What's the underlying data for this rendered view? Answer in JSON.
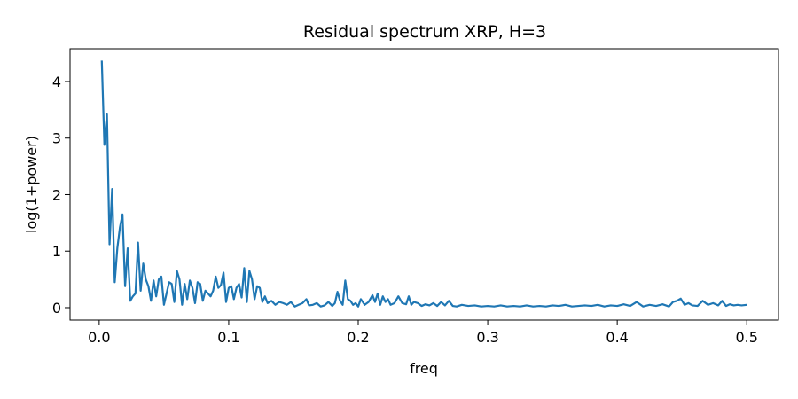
{
  "chart_data": {
    "type": "line",
    "title": "Residual spectrum XRP, H=3",
    "xlabel": "freq",
    "ylabel": "log(1+power)",
    "xlim": [
      -0.0225,
      0.5245
    ],
    "ylim": [
      -0.22,
      4.58
    ],
    "xticks": [
      0.0,
      0.1,
      0.2,
      0.3,
      0.4,
      0.5
    ],
    "xtick_labels": [
      "0.0",
      "0.1",
      "0.2",
      "0.3",
      "0.4",
      "0.5"
    ],
    "yticks": [
      0,
      1,
      2,
      3,
      4
    ],
    "ytick_labels": [
      "0",
      "1",
      "2",
      "3",
      "4"
    ],
    "grid": false,
    "legend": null,
    "series": [
      {
        "color": "#1f77b4",
        "x": [
          0.002,
          0.004,
          0.006,
          0.008,
          0.01,
          0.012,
          0.014,
          0.016,
          0.018,
          0.02,
          0.022,
          0.024,
          0.026,
          0.028,
          0.03,
          0.032,
          0.034,
          0.036,
          0.038,
          0.04,
          0.042,
          0.044,
          0.046,
          0.048,
          0.05,
          0.052,
          0.054,
          0.056,
          0.058,
          0.06,
          0.062,
          0.064,
          0.066,
          0.068,
          0.07,
          0.072,
          0.074,
          0.076,
          0.078,
          0.08,
          0.082,
          0.084,
          0.086,
          0.088,
          0.09,
          0.092,
          0.094,
          0.096,
          0.098,
          0.1,
          0.102,
          0.104,
          0.106,
          0.108,
          0.11,
          0.112,
          0.114,
          0.116,
          0.118,
          0.12,
          0.122,
          0.124,
          0.126,
          0.128,
          0.13,
          0.133,
          0.136,
          0.139,
          0.142,
          0.145,
          0.148,
          0.151,
          0.154,
          0.157,
          0.16,
          0.162,
          0.165,
          0.168,
          0.171,
          0.174,
          0.177,
          0.18,
          0.182,
          0.184,
          0.186,
          0.188,
          0.19,
          0.192,
          0.194,
          0.196,
          0.198,
          0.2,
          0.202,
          0.205,
          0.208,
          0.211,
          0.213,
          0.215,
          0.217,
          0.219,
          0.221,
          0.223,
          0.225,
          0.228,
          0.231,
          0.234,
          0.237,
          0.239,
          0.241,
          0.243,
          0.246,
          0.249,
          0.252,
          0.255,
          0.258,
          0.261,
          0.264,
          0.267,
          0.27,
          0.273,
          0.276,
          0.28,
          0.285,
          0.29,
          0.295,
          0.3,
          0.305,
          0.31,
          0.315,
          0.32,
          0.325,
          0.33,
          0.335,
          0.34,
          0.345,
          0.35,
          0.355,
          0.36,
          0.365,
          0.37,
          0.375,
          0.38,
          0.385,
          0.39,
          0.395,
          0.4,
          0.405,
          0.41,
          0.415,
          0.42,
          0.425,
          0.43,
          0.435,
          0.44,
          0.443,
          0.446,
          0.449,
          0.452,
          0.455,
          0.458,
          0.462,
          0.466,
          0.47,
          0.474,
          0.478,
          0.481,
          0.484,
          0.487,
          0.49,
          0.493,
          0.496,
          0.5
        ],
        "y": [
          4.37,
          2.88,
          3.42,
          1.12,
          2.1,
          0.45,
          1.05,
          1.42,
          1.65,
          0.38,
          1.05,
          0.12,
          0.2,
          0.25,
          1.15,
          0.3,
          0.78,
          0.5,
          0.38,
          0.12,
          0.48,
          0.2,
          0.5,
          0.55,
          0.05,
          0.25,
          0.45,
          0.42,
          0.1,
          0.65,
          0.5,
          0.05,
          0.42,
          0.15,
          0.48,
          0.35,
          0.08,
          0.45,
          0.42,
          0.12,
          0.3,
          0.25,
          0.2,
          0.3,
          0.55,
          0.35,
          0.4,
          0.62,
          0.1,
          0.35,
          0.38,
          0.15,
          0.35,
          0.42,
          0.18,
          0.7,
          0.1,
          0.65,
          0.5,
          0.15,
          0.38,
          0.35,
          0.1,
          0.2,
          0.08,
          0.12,
          0.05,
          0.1,
          0.08,
          0.05,
          0.1,
          0.02,
          0.05,
          0.08,
          0.15,
          0.04,
          0.05,
          0.08,
          0.02,
          0.04,
          0.1,
          0.03,
          0.08,
          0.28,
          0.12,
          0.05,
          0.48,
          0.15,
          0.12,
          0.05,
          0.08,
          0.02,
          0.15,
          0.05,
          0.1,
          0.22,
          0.1,
          0.25,
          0.05,
          0.2,
          0.1,
          0.15,
          0.05,
          0.08,
          0.2,
          0.08,
          0.06,
          0.2,
          0.05,
          0.1,
          0.08,
          0.03,
          0.06,
          0.04,
          0.08,
          0.03,
          0.1,
          0.04,
          0.12,
          0.03,
          0.02,
          0.05,
          0.03,
          0.04,
          0.02,
          0.03,
          0.02,
          0.04,
          0.02,
          0.03,
          0.02,
          0.04,
          0.02,
          0.03,
          0.02,
          0.04,
          0.03,
          0.05,
          0.02,
          0.03,
          0.04,
          0.03,
          0.05,
          0.02,
          0.04,
          0.03,
          0.06,
          0.03,
          0.1,
          0.02,
          0.05,
          0.03,
          0.06,
          0.02,
          0.1,
          0.12,
          0.16,
          0.05,
          0.08,
          0.04,
          0.03,
          0.12,
          0.05,
          0.08,
          0.04,
          0.12,
          0.03,
          0.06,
          0.04,
          0.05,
          0.04,
          0.05
        ]
      }
    ]
  }
}
